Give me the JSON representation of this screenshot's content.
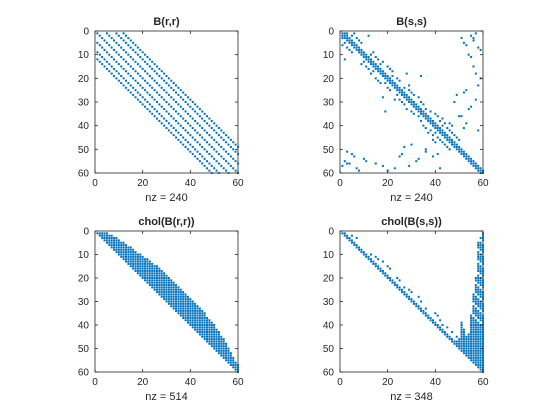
{
  "marker_color": "#0072bd",
  "chart_data": [
    {
      "type": "spy",
      "title": "B(r,r)",
      "xlabel": "nz = 240",
      "n": 60,
      "xlim": [
        0,
        60
      ],
      "ylim": [
        0,
        60
      ],
      "y_reversed": true,
      "xticks": [
        0,
        20,
        40,
        60
      ],
      "yticks": [
        0,
        10,
        20,
        30,
        40,
        50,
        60
      ],
      "grid": false,
      "pattern": "diagonal plus symmetric off-diagonal bands at offsets ±4, ±8, ±11 (estimated)",
      "diagonal": true,
      "bands": [
        4,
        8,
        11
      ],
      "extra": []
    },
    {
      "type": "spy",
      "title": "B(s,s)",
      "xlabel": "nz = 240",
      "n": 60,
      "xlim": [
        0,
        60
      ],
      "ylim": [
        0,
        60
      ],
      "y_reversed": true,
      "xticks": [
        0,
        20,
        40,
        60
      ],
      "yticks": [
        0,
        10,
        20,
        30,
        40,
        50,
        60
      ],
      "grid": false,
      "pattern": "diagonal plus scattered symmetric entries (estimated)",
      "diagonal": true,
      "bands": [
        1
      ],
      "extra": [
        [
          1,
          3
        ],
        [
          2,
          5
        ],
        [
          3,
          7
        ],
        [
          1,
          6
        ],
        [
          4,
          8
        ],
        [
          5,
          9
        ],
        [
          2,
          12
        ],
        [
          10,
          13
        ],
        [
          11,
          15
        ],
        [
          12,
          16
        ],
        [
          13,
          18
        ],
        [
          14,
          17
        ],
        [
          9,
          14
        ],
        [
          15,
          20
        ],
        [
          16,
          21
        ],
        [
          20,
          24
        ],
        [
          21,
          25
        ],
        [
          22,
          19
        ],
        [
          17,
          22
        ],
        [
          24,
          27
        ],
        [
          25,
          29
        ],
        [
          26,
          30
        ],
        [
          27,
          31
        ],
        [
          28,
          33
        ],
        [
          30,
          34
        ],
        [
          31,
          35
        ],
        [
          33,
          36
        ],
        [
          34,
          38
        ],
        [
          35,
          40
        ],
        [
          36,
          41
        ],
        [
          38,
          42
        ],
        [
          40,
          43
        ],
        [
          41,
          45
        ],
        [
          42,
          46
        ],
        [
          43,
          47
        ],
        [
          44,
          48
        ],
        [
          45,
          49
        ],
        [
          46,
          50
        ],
        [
          44,
          39
        ],
        [
          37,
          43
        ],
        [
          3,
          51
        ],
        [
          5,
          52
        ],
        [
          6,
          53
        ],
        [
          2,
          55
        ],
        [
          4,
          56
        ],
        [
          1,
          57
        ],
        [
          7,
          58
        ],
        [
          8,
          59
        ],
        [
          10,
          54
        ],
        [
          15,
          56
        ],
        [
          18,
          57
        ],
        [
          20,
          59
        ],
        [
          23,
          58
        ],
        [
          29,
          57
        ],
        [
          26,
          52
        ],
        [
          32,
          55
        ],
        [
          36,
          51
        ],
        [
          39,
          53
        ],
        [
          42,
          58
        ],
        [
          19,
          34
        ],
        [
          23,
          29
        ],
        [
          28,
          18
        ],
        [
          47,
          40
        ],
        [
          50,
          36
        ],
        [
          52,
          41
        ],
        [
          54,
          33
        ],
        [
          55,
          11
        ],
        [
          56,
          3
        ],
        [
          49,
          27
        ],
        [
          53,
          25
        ],
        [
          48,
          30
        ],
        [
          39,
          46
        ]
      ]
    },
    {
      "type": "spy",
      "title": "chol(B(r,r))",
      "xlabel": "nz = 514",
      "n": 60,
      "xlim": [
        0,
        60
      ],
      "ylim": [
        0,
        60
      ],
      "y_reversed": true,
      "xticks": [
        0,
        20,
        40,
        60
      ],
      "yticks": [
        0,
        10,
        20,
        30,
        40,
        50,
        60
      ],
      "grid": false,
      "pattern": "upper triangular band, profile widening to ~11 below diagonal (estimated)",
      "upper_band": [
        [
          0,
          2
        ],
        [
          5,
          4
        ],
        [
          10,
          6
        ],
        [
          20,
          9
        ],
        [
          28,
          11
        ],
        [
          45,
          11
        ],
        [
          52,
          9
        ],
        [
          56,
          6
        ],
        [
          59,
          3
        ]
      ]
    },
    {
      "type": "spy",
      "title": "chol(B(s,s))",
      "xlabel": "nz = 348",
      "n": 60,
      "xlim": [
        0,
        60
      ],
      "ylim": [
        0,
        60
      ],
      "y_reversed": true,
      "xticks": [
        0,
        20,
        40,
        60
      ],
      "yticks": [
        0,
        10,
        20,
        30,
        40,
        50,
        60
      ],
      "grid": false,
      "pattern": "diagonal plus sparse fill concentrated in the right-hand columns (estimated)",
      "diagonal": true,
      "bands": [
        1
      ],
      "extra": [
        [
          2,
          5
        ],
        [
          3,
          7
        ],
        [
          10,
          13
        ],
        [
          11,
          15
        ],
        [
          12,
          16
        ],
        [
          13,
          18
        ],
        [
          15,
          20
        ],
        [
          16,
          21
        ],
        [
          20,
          24
        ],
        [
          21,
          25
        ],
        [
          24,
          27
        ],
        [
          25,
          29
        ],
        [
          26,
          30
        ],
        [
          28,
          33
        ],
        [
          30,
          34
        ],
        [
          33,
          36
        ],
        [
          35,
          40
        ],
        [
          36,
          41
        ],
        [
          38,
          42
        ],
        [
          40,
          43
        ],
        [
          41,
          45
        ],
        [
          43,
          47
        ],
        [
          45,
          49
        ],
        [
          46,
          50
        ]
      ],
      "dense_cols": [
        [
          51,
          39
        ],
        [
          52,
          42
        ],
        [
          53,
          45
        ],
        [
          54,
          44
        ],
        [
          55,
          36
        ],
        [
          56,
          27
        ],
        [
          57,
          20
        ],
        [
          58,
          5
        ],
        [
          59,
          3
        ],
        [
          60,
          1
        ],
        [
          50,
          46
        ],
        [
          49,
          47
        ]
      ]
    }
  ]
}
